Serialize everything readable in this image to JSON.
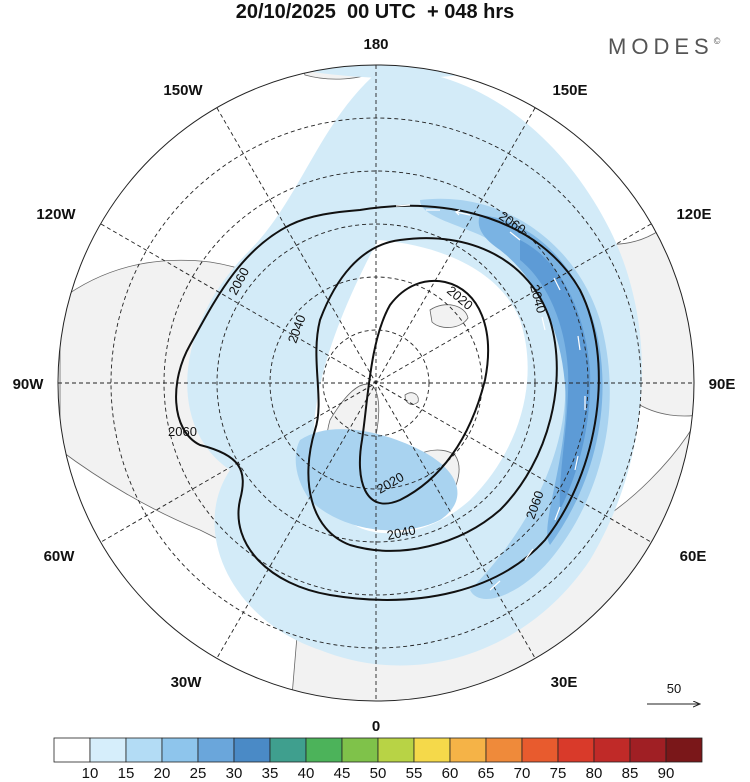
{
  "title": "20/10/2025  00 UTC  + 048 hrs",
  "brand": "MODES",
  "brand_mark": "©",
  "longitude_labels": {
    "n180": "180",
    "e150": "150E",
    "e120": "120E",
    "e90": "90E",
    "e60": "60E",
    "e30": "30E",
    "s0": "0",
    "w30": "30W",
    "w60": "60W",
    "w90": "90W",
    "w120": "120W",
    "w150": "150W"
  },
  "contour_labels": [
    "2060",
    "2060",
    "2040",
    "2020",
    "2040",
    "2060",
    "2060",
    "2020",
    "2040"
  ],
  "vector_reference": "50",
  "colorbar": {
    "levels": [
      "10",
      "15",
      "20",
      "25",
      "30",
      "35",
      "40",
      "45",
      "50",
      "55",
      "60",
      "65",
      "70",
      "75",
      "80",
      "85",
      "90"
    ],
    "colors": [
      "#ffffff",
      "#d6eefb",
      "#b3dcf5",
      "#8ec5ec",
      "#6aa6db",
      "#4a8ac6",
      "#3f9f8e",
      "#4cb35a",
      "#7fc24a",
      "#b8d345",
      "#f5d94a",
      "#f5b347",
      "#ef8a3a",
      "#e85b2e",
      "#d93a2a",
      "#c02a28",
      "#a01f24",
      "#7a1719"
    ]
  },
  "colors": {
    "land": "#f2f2f2",
    "ocean": "#ffffff",
    "jet_light": "#d3ebf8",
    "jet_mid": "#a9d3f0",
    "jet_strong": "#7ab3e3",
    "jet_core": "#5d9bd6"
  }
}
